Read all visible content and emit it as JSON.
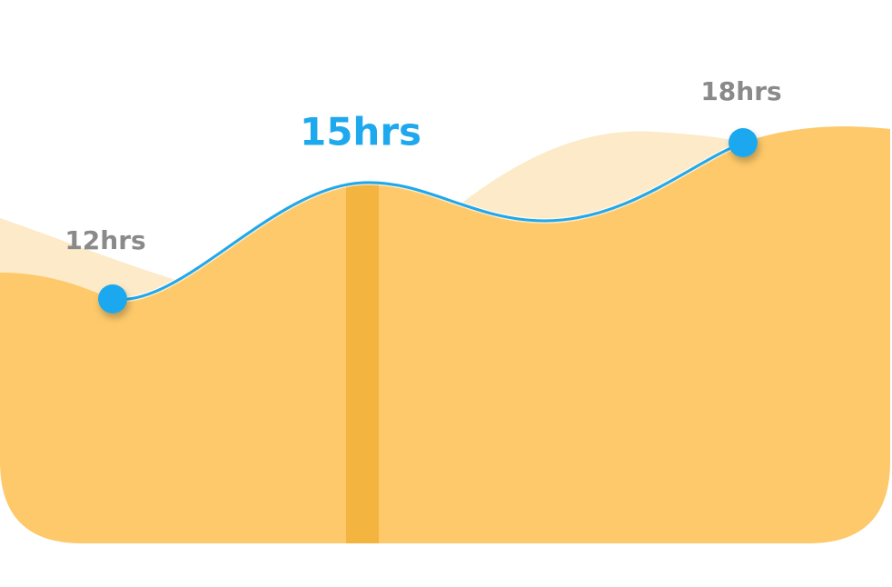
{
  "points": [
    {
      "label": "12hrs",
      "highlighted": false
    },
    {
      "label": "15hrs",
      "highlighted": true
    },
    {
      "label": "18hrs",
      "highlighted": false
    }
  ]
}
